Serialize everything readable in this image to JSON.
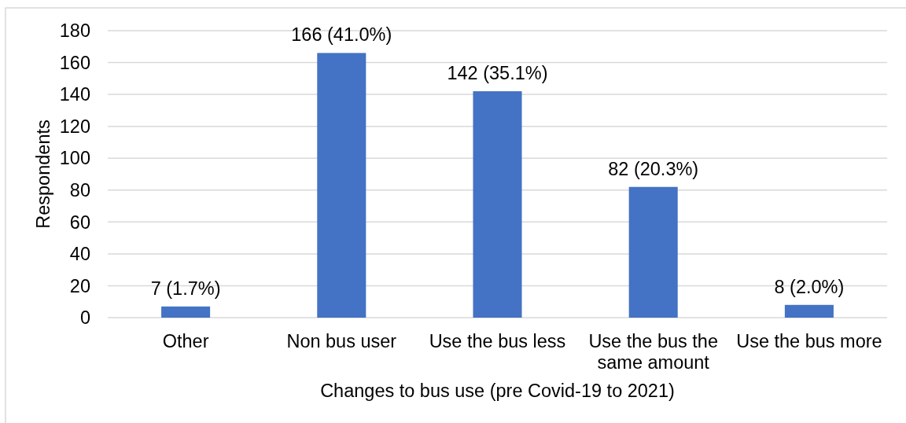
{
  "chart_data": {
    "type": "bar",
    "xlabel": "Changes to bus use (pre Covid-19 to 2021)",
    "ylabel": "Respondents",
    "categories": [
      "Other",
      "Non bus user",
      "Use the bus less",
      "Use the bus the same amount",
      "Use the bus more"
    ],
    "values": [
      7,
      166,
      142,
      82,
      8
    ],
    "color": "#4472c4",
    "value_labels": [
      "7 (1.7%)",
      "166 (41.0%)",
      "142 (35.1%)",
      "82 (20.3%)",
      "8 (2.0%)"
    ],
    "ylim": [
      0,
      180
    ],
    "yticks": [
      0,
      20,
      40,
      60,
      80,
      100,
      120,
      140,
      160,
      180
    ],
    "grid": "y"
  }
}
